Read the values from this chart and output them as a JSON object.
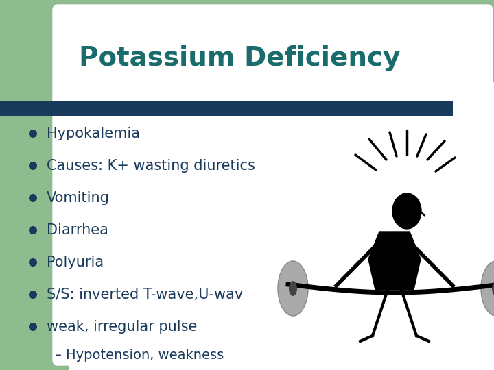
{
  "title": "Potassium Deficiency",
  "title_color": "#1a6b6b",
  "title_fontsize": 28,
  "bg_color": "#ffffff",
  "green_rect_color": "#8fbc8f",
  "navy_bar_color": "#1a3a5c",
  "bullet_dot_color": "#1a3a5c",
  "bullet_text_color": "#1a3a5c",
  "bullet_fontsize": 15,
  "bullets": [
    "Hypokalemia",
    "Causes: K+ wasting diuretics",
    "Vomiting",
    "Diarrhea",
    "Polyuria",
    "S/S: inverted T-wave,U-wav",
    "weak, irregular pulse"
  ],
  "sub_bullet": "– Hypotension, weakness",
  "sub_bullet_fontsize": 14,
  "stick_color": "#000000",
  "weight_color": "#aaaaaa",
  "weight_dark": "#444444"
}
